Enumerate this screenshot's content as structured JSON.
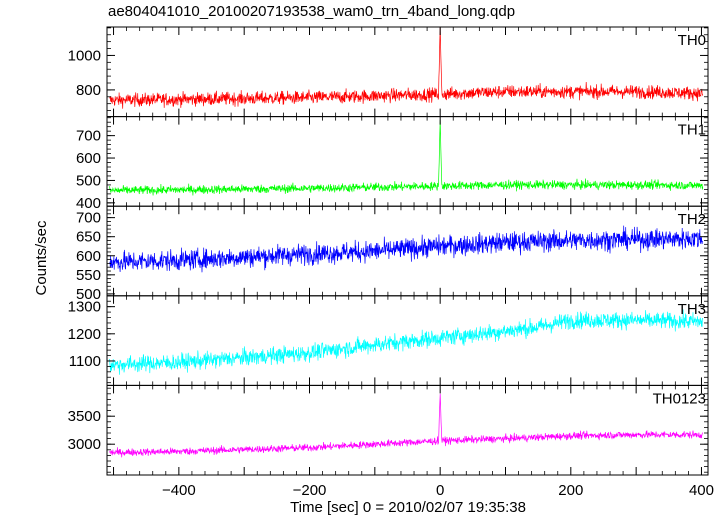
{
  "chart_data": {
    "type": "line",
    "title": "ae804041010_20100207193538_wam0_trn_4band_long.qdp",
    "xlabel": "Time [sec] 0 = 2010/02/07 19:35:38",
    "ylabel": "Counts/sec",
    "xlim": [
      -510,
      410
    ],
    "xticks": [
      -400,
      -200,
      0,
      200,
      400
    ],
    "panels": [
      {
        "name": "TH0",
        "color": "#ff0000",
        "ylim": [
          645,
          1165
        ],
        "yticks": [
          800,
          1000
        ],
        "trend_x": [
          -510,
          -400,
          -200,
          -100,
          0,
          100,
          200,
          300,
          400
        ],
        "trend_y": [
          740,
          745,
          755,
          765,
          775,
          790,
          790,
          790,
          780
        ],
        "noise": 50,
        "burst": {
          "t": 0,
          "peak": 1165
        }
      },
      {
        "name": "TH1",
        "color": "#00ff00",
        "ylim": [
          385,
          785
        ],
        "yticks": [
          400,
          500,
          600,
          700
        ],
        "trend_x": [
          -510,
          -400,
          -200,
          -100,
          0,
          100,
          200,
          300,
          400
        ],
        "trend_y": [
          455,
          458,
          465,
          470,
          475,
          480,
          480,
          480,
          478
        ],
        "noise": 25,
        "burst": {
          "t": 0,
          "peak": 770
        }
      },
      {
        "name": "TH2",
        "color": "#0000ff",
        "ylim": [
          495,
          730
        ],
        "yticks": [
          500,
          550,
          600,
          650,
          700
        ],
        "trend_x": [
          -510,
          -400,
          -200,
          -100,
          0,
          100,
          200,
          300,
          400
        ],
        "trend_y": [
          583,
          588,
          605,
          612,
          625,
          635,
          640,
          643,
          645
        ],
        "noise": 35,
        "burst": null
      },
      {
        "name": "TH3",
        "color": "#00ffff",
        "ylim": [
          1010,
          1340
        ],
        "yticks": [
          1100,
          1200,
          1300
        ],
        "trend_x": [
          -510,
          -400,
          -200,
          -100,
          0,
          100,
          150,
          200,
          300,
          400
        ],
        "trend_y": [
          1085,
          1095,
          1130,
          1160,
          1185,
          1210,
          1225,
          1250,
          1250,
          1245
        ],
        "noise": 40,
        "burst": null
      },
      {
        "name": "TH0123",
        "color": "#ff00ff",
        "ylim": [
          2450,
          4050
        ],
        "yticks": [
          3000,
          3500
        ],
        "trend_x": [
          -510,
          -400,
          -200,
          -100,
          0,
          100,
          200,
          300,
          400
        ],
        "trend_y": [
          2850,
          2870,
          2940,
          3000,
          3060,
          3100,
          3150,
          3170,
          3170
        ],
        "noise": 85,
        "burst": {
          "t": 0,
          "peak": 3900
        }
      }
    ]
  }
}
